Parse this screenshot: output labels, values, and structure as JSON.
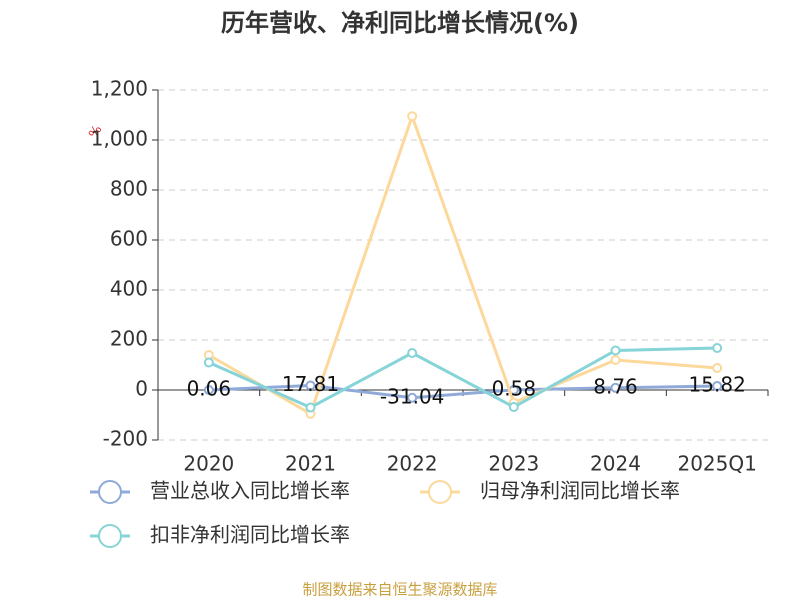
{
  "chart_data": {
    "type": "line",
    "title": "历年营收、净利同比增长情况(%)",
    "y_label": "%",
    "categories": [
      "2020",
      "2021",
      "2022",
      "2023",
      "2024",
      "2025Q1"
    ],
    "series": [
      {
        "name": "营业总收入同比增长率",
        "color": "#8fa9d8",
        "values": [
          0.06,
          17.81,
          -31.04,
          0.58,
          8.76,
          15.82
        ]
      },
      {
        "name": "归母净利润同比增长率",
        "color": "#fcd99b",
        "values": [
          140,
          -95,
          1095,
          -50,
          120,
          88
        ]
      },
      {
        "name": "扣非净利润同比增长率",
        "color": "#86d4d8",
        "values": [
          110,
          -70,
          148,
          -68,
          158,
          168
        ]
      }
    ],
    "ylim": [
      -200,
      1200
    ],
    "yticks": [
      -200,
      0,
      200,
      400,
      600,
      800,
      {
        "value": 1000,
        "label": "1,000"
      },
      {
        "value": 1200,
        "label": "1,200"
      }
    ],
    "grid": true,
    "source": "制图数据来自恒生聚源数据库"
  }
}
